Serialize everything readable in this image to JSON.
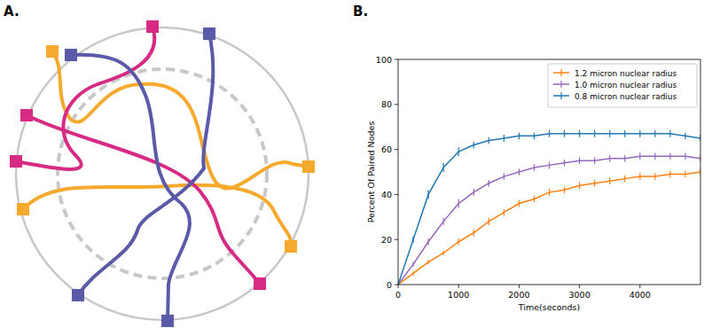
{
  "panel_labels": [
    "A.",
    "B."
  ],
  "chart_data": {
    "type": "line",
    "x_label": "Time(seconds)",
    "y_label": "Percent Of Paired Nodes",
    "x": [
      0,
      250,
      500,
      750,
      1000,
      1250,
      1500,
      1750,
      2000,
      2250,
      2500,
      2750,
      3000,
      3250,
      3500,
      3750,
      4000,
      4250,
      4500,
      4750,
      5000
    ],
    "series": [
      {
        "name": "1.2 micron nuclear radius",
        "color": "#ff7f0e",
        "values": [
          0,
          5,
          10,
          14,
          19,
          23,
          28,
          32,
          36,
          38,
          41,
          42,
          44,
          45,
          46,
          47,
          48,
          48,
          49,
          49,
          50
        ],
        "errors": [
          0,
          1,
          1,
          1,
          1.5,
          1.5,
          1.5,
          1.5,
          1.5,
          1.5,
          1.5,
          1.5,
          1.5,
          1.5,
          1.5,
          1.5,
          1.5,
          1.5,
          1.5,
          1.5,
          1.5
        ]
      },
      {
        "name": "1.0 micron nuclear radius",
        "color": "#9467bd",
        "values": [
          0,
          9,
          19,
          28,
          36,
          41,
          45,
          48,
          50,
          52,
          53,
          54,
          55,
          55,
          56,
          56,
          57,
          57,
          57,
          57,
          56
        ],
        "errors": [
          0,
          1,
          1.5,
          1.5,
          2,
          1.5,
          1.5,
          1.5,
          1.5,
          1.5,
          1.5,
          1.5,
          1.5,
          1.5,
          1.5,
          1.5,
          1.5,
          1.5,
          1.5,
          1.5,
          1.5
        ]
      },
      {
        "name": "0.8 micron nuclear radius",
        "color": "#1f77b4",
        "values": [
          0,
          20,
          40,
          52,
          59,
          62,
          64,
          65,
          66,
          66,
          67,
          67,
          67,
          67,
          67,
          67,
          67,
          67,
          67,
          66,
          65
        ],
        "errors": [
          0,
          1.5,
          2,
          2,
          2,
          1.5,
          1.5,
          1.5,
          1.5,
          1.5,
          1.5,
          1.5,
          1.5,
          1.5,
          1.5,
          1.5,
          1.5,
          1.5,
          1.5,
          1.5,
          1.5
        ]
      }
    ],
    "xlim": [
      0,
      5000
    ],
    "ylim": [
      0,
      100
    ],
    "xticks": [
      0,
      1000,
      2000,
      3000,
      4000
    ],
    "yticks": [
      0,
      20,
      40,
      60,
      80,
      100
    ],
    "legend": "upper right",
    "grid": false
  }
}
